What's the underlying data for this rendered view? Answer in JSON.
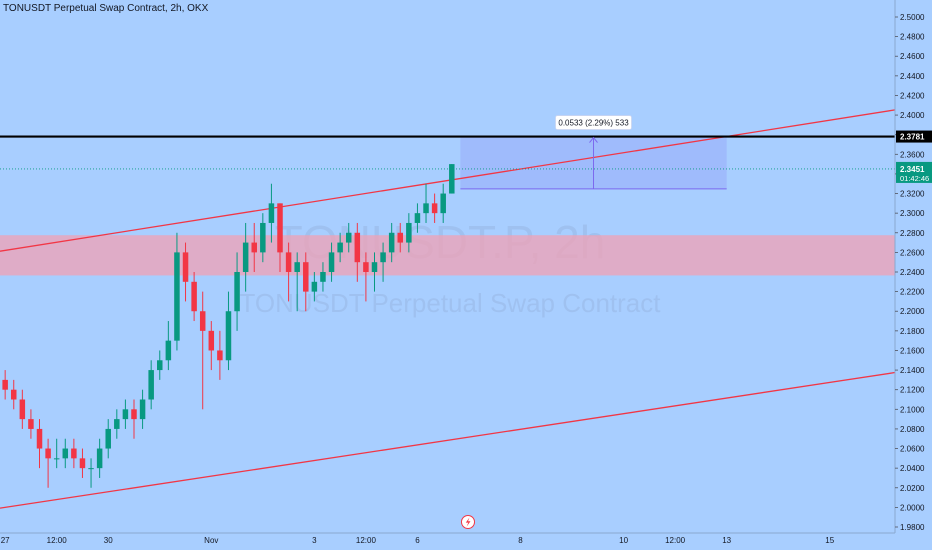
{
  "header": {
    "title": "TONUSDT Perpetual Swap Contract, 2h, OKX"
  },
  "watermark": {
    "symbol": "TONUSDT.P, 2h",
    "description": "TONUSDT Perpetual Swap Contract"
  },
  "colors": {
    "background": "#a8ceff",
    "candle_up": "#089981",
    "candle_down": "#f23645",
    "trendline": "#f23645",
    "zone": "#f2a0b4",
    "horizontal_level": "#000000",
    "measure": "#7b68ee",
    "last_price_badge": "#089981"
  },
  "chart_data": {
    "type": "candlestick",
    "y_axis": {
      "min": 1.98,
      "max": 2.5,
      "ticks": [
        "1.9800",
        "2.0000",
        "2.0200",
        "2.0400",
        "2.0600",
        "2.0800",
        "2.1000",
        "2.1200",
        "2.1400",
        "2.1600",
        "2.1800",
        "2.2000",
        "2.2200",
        "2.2400",
        "2.2600",
        "2.2800",
        "2.3000",
        "2.3200",
        "2.3400",
        "2.3600",
        "2.3800",
        "2.4000",
        "2.4200",
        "2.4400",
        "2.4600",
        "2.4800",
        "2.5000"
      ]
    },
    "x_axis": {
      "ticks": [
        {
          "label": "27",
          "bar": 0
        },
        {
          "label": "12:00",
          "bar": 6
        },
        {
          "label": "30",
          "bar": 12
        },
        {
          "label": "Nov",
          "bar": 24
        },
        {
          "label": "3",
          "bar": 36
        },
        {
          "label": "12:00",
          "bar": 42
        },
        {
          "label": "6",
          "bar": 48
        },
        {
          "label": "8",
          "bar": 60
        },
        {
          "label": "10",
          "bar": 72
        },
        {
          "label": "12:00",
          "bar": 78
        },
        {
          "label": "13",
          "bar": 84
        },
        {
          "label": "15",
          "bar": 96
        }
      ],
      "bars_visible": [
        -0.6,
        103.6
      ]
    },
    "candles_close": [
      2.12,
      2.11,
      2.09,
      2.08,
      2.06,
      2.05,
      2.05,
      2.06,
      2.05,
      2.04,
      2.04,
      2.06,
      2.08,
      2.09,
      2.1,
      2.09,
      2.11,
      2.14,
      2.15,
      2.17,
      2.26,
      2.23,
      2.2,
      2.18,
      2.16,
      2.15,
      2.2,
      2.24,
      2.27,
      2.26,
      2.29,
      2.31,
      2.26,
      2.24,
      2.25,
      2.22,
      2.23,
      2.24,
      2.26,
      2.27,
      2.28,
      2.25,
      2.24,
      2.25,
      2.26,
      2.28,
      2.27,
      2.29,
      2.3,
      2.31,
      2.3,
      2.32,
      2.35
    ],
    "candles_start": [
      2.13,
      2.12,
      2.11,
      2.09,
      2.08,
      2.06,
      2.05,
      2.05,
      2.06,
      2.05,
      2.04,
      2.04,
      2.06,
      2.08,
      2.09,
      2.1,
      2.09,
      2.11,
      2.14,
      2.15,
      2.17,
      2.26,
      2.23,
      2.2,
      2.18,
      2.16,
      2.15,
      2.2,
      2.24,
      2.27,
      2.26,
      2.29,
      2.31,
      2.26,
      2.24,
      2.25,
      2.22,
      2.23,
      2.24,
      2.26,
      2.27,
      2.28,
      2.25,
      2.24,
      2.25,
      2.26,
      2.28,
      2.27,
      2.29,
      2.3,
      2.31,
      2.3,
      2.32
    ],
    "candles_high": [
      2.14,
      2.13,
      2.12,
      2.1,
      2.09,
      2.07,
      2.07,
      2.07,
      2.07,
      2.06,
      2.05,
      2.07,
      2.09,
      2.1,
      2.11,
      2.11,
      2.12,
      2.15,
      2.16,
      2.19,
      2.28,
      2.27,
      2.24,
      2.22,
      2.19,
      2.18,
      2.22,
      2.26,
      2.29,
      2.29,
      2.3,
      2.33,
      2.31,
      2.27,
      2.26,
      2.26,
      2.24,
      2.25,
      2.27,
      2.28,
      2.29,
      2.29,
      2.26,
      2.26,
      2.27,
      2.29,
      2.29,
      2.3,
      2.31,
      2.33,
      2.32,
      2.33,
      2.35
    ],
    "candles_low": [
      2.11,
      2.1,
      2.08,
      2.07,
      2.04,
      2.02,
      2.04,
      2.04,
      2.04,
      2.03,
      2.02,
      2.03,
      2.05,
      2.07,
      2.08,
      2.07,
      2.08,
      2.1,
      2.13,
      2.14,
      2.16,
      2.21,
      2.19,
      2.1,
      2.14,
      2.13,
      2.14,
      2.18,
      2.22,
      2.24,
      2.25,
      2.27,
      2.24,
      2.21,
      2.2,
      2.2,
      2.21,
      2.22,
      2.23,
      2.25,
      2.26,
      2.23,
      2.21,
      2.22,
      2.23,
      2.25,
      2.26,
      2.26,
      2.28,
      2.29,
      2.29,
      2.29,
      2.32
    ],
    "horizontal_level": {
      "price": 2.3781,
      "label": "2.3781"
    },
    "last_price": {
      "price": 2.3451,
      "label": "2.3451",
      "countdown": "01:42:46"
    },
    "zone": {
      "top": 2.2775,
      "bottom": 2.2365
    },
    "trendlines": [
      {
        "name": "upper",
        "from": {
          "bar": -0.6,
          "price": 2.2612
        },
        "to": {
          "bar": 103.6,
          "price": 2.4053
        }
      },
      {
        "name": "lower",
        "from": {
          "bar": -0.6,
          "price": 1.9992
        },
        "to": {
          "bar": 103.6,
          "price": 2.1375
        }
      }
    ],
    "measure": {
      "label": "0.0533 (2.29%) 533",
      "start_bar": 53,
      "end_bar": 84,
      "base_price": 2.3248,
      "target_price": 2.3781
    },
    "grid": false,
    "legend": "none"
  }
}
